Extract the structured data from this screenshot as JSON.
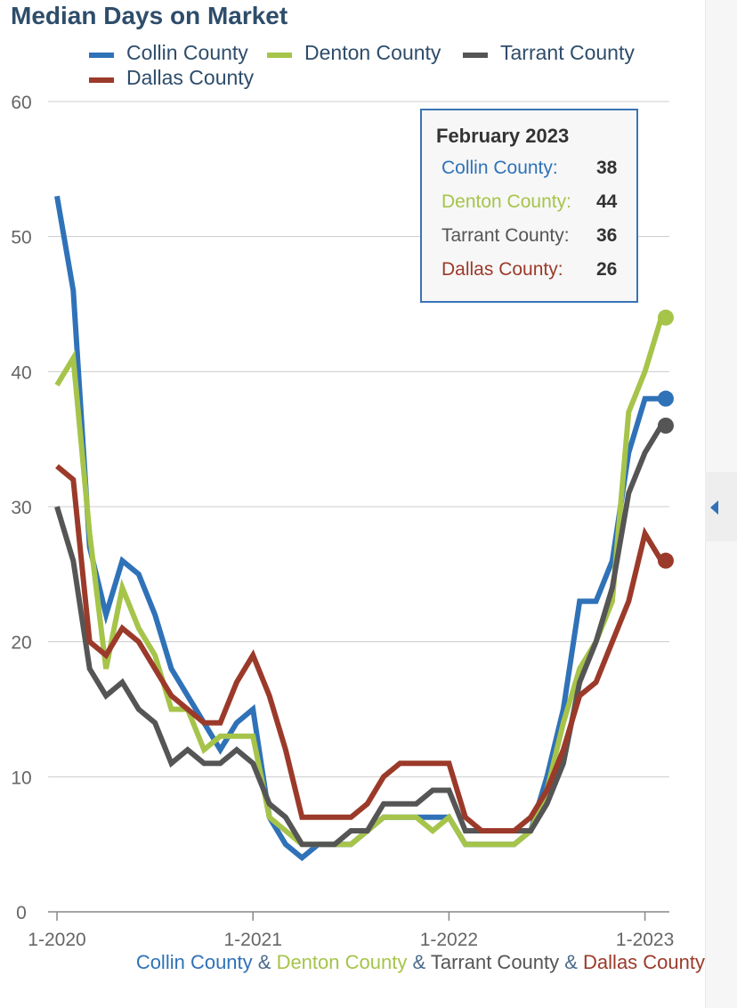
{
  "chart_data": {
    "type": "line",
    "title": "Median Days on Market",
    "xlabel": "",
    "ylabel": "",
    "ylim": [
      0,
      60
    ],
    "yticks": [
      0,
      10,
      20,
      30,
      40,
      50,
      60
    ],
    "x_tick_labels": [
      "1-2020",
      "1-2021",
      "1-2022",
      "1-2023"
    ],
    "x": [
      "2020-01",
      "2020-02",
      "2020-03",
      "2020-04",
      "2020-05",
      "2020-06",
      "2020-07",
      "2020-08",
      "2020-09",
      "2020-10",
      "2020-11",
      "2020-12",
      "2021-01",
      "2021-02",
      "2021-03",
      "2021-04",
      "2021-05",
      "2021-06",
      "2021-07",
      "2021-08",
      "2021-09",
      "2021-10",
      "2021-11",
      "2021-12",
      "2022-01",
      "2022-02",
      "2022-03",
      "2022-04",
      "2022-05",
      "2022-06",
      "2022-07",
      "2022-08",
      "2022-09",
      "2022-10",
      "2022-11",
      "2022-12",
      "2023-01",
      "2023-02"
    ],
    "grid": true,
    "legend_position": "top",
    "series": [
      {
        "name": "Collin County",
        "color": "#2f72b8",
        "values": [
          53,
          46,
          27,
          22,
          26,
          25,
          22,
          18,
          16,
          14,
          12,
          14,
          15,
          7,
          5,
          4,
          5,
          5,
          5,
          6,
          7,
          7,
          7,
          7,
          7,
          5,
          5,
          5,
          5,
          6,
          10,
          15,
          23,
          23,
          26,
          34,
          38,
          38
        ]
      },
      {
        "name": "Denton County",
        "color": "#a6c44a",
        "values": [
          39,
          41,
          28,
          18,
          24,
          21,
          19,
          15,
          15,
          12,
          13,
          13,
          13,
          7,
          6,
          5,
          5,
          5,
          5,
          6,
          7,
          7,
          7,
          6,
          7,
          5,
          5,
          5,
          5,
          6,
          9,
          14,
          18,
          20,
          23,
          37,
          40,
          44
        ]
      },
      {
        "name": "Tarrant County",
        "color": "#555555",
        "values": [
          30,
          26,
          18,
          16,
          17,
          15,
          14,
          11,
          12,
          11,
          11,
          12,
          11,
          8,
          7,
          5,
          5,
          5,
          6,
          6,
          8,
          8,
          8,
          9,
          9,
          6,
          6,
          6,
          6,
          6,
          8,
          11,
          17,
          20,
          24,
          31,
          34,
          36
        ]
      },
      {
        "name": "Dallas County",
        "color": "#9b3a2a",
        "values": [
          33,
          32,
          20,
          19,
          21,
          20,
          18,
          16,
          15,
          14,
          14,
          17,
          19,
          16,
          12,
          7,
          7,
          7,
          7,
          8,
          10,
          11,
          11,
          11,
          11,
          7,
          6,
          6,
          6,
          7,
          9,
          12,
          16,
          17,
          20,
          23,
          28,
          26
        ]
      }
    ]
  },
  "tooltip": {
    "title": "February 2023",
    "rows": [
      {
        "label": "Collin County:",
        "value": "38",
        "color": "#2f72b8"
      },
      {
        "label": "Denton County:",
        "value": "44",
        "color": "#a6c44a"
      },
      {
        "label": "Tarrant County:",
        "value": "36",
        "color": "#555555"
      },
      {
        "label": "Dallas County:",
        "value": "26",
        "color": "#9b3a2a"
      }
    ]
  },
  "caption": {
    "parts": [
      {
        "text": "Collin County",
        "color": "#2f72b8"
      },
      {
        "text": " & ",
        "color": "#4a6a8a"
      },
      {
        "text": "Denton County",
        "color": "#a6c44a"
      },
      {
        "text": " & ",
        "color": "#4a6a8a"
      },
      {
        "text": "Tarrant County",
        "color": "#555555"
      },
      {
        "text": " & ",
        "color": "#4a6a8a"
      },
      {
        "text": "Dallas County",
        "color": "#9b3a2a"
      }
    ]
  },
  "side_panel": {
    "icon": "chevron-left-icon"
  }
}
